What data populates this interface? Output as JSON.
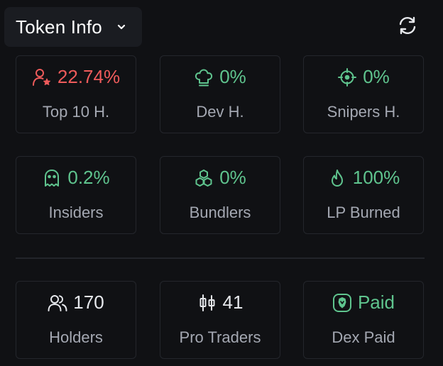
{
  "header": {
    "title": "Token Info",
    "dropdown_icon": "chevron-down-icon",
    "refresh_icon": "refresh-icon"
  },
  "colors": {
    "danger": "#ee5b5b",
    "success": "#5fc48e",
    "neutral": "#e6e8ec",
    "label": "#a4a8b2",
    "border": "#24262c",
    "background": "#101114"
  },
  "stats_row1": [
    {
      "value": "22.74%",
      "label": "Top 10 H.",
      "icon": "user-star-icon",
      "tone": "danger"
    },
    {
      "value": "0%",
      "label": "Dev H.",
      "icon": "chef-hat-icon",
      "tone": "success"
    },
    {
      "value": "0%",
      "label": "Snipers H.",
      "icon": "crosshair-icon",
      "tone": "success"
    }
  ],
  "stats_row2": [
    {
      "value": "0.2%",
      "label": "Insiders",
      "icon": "ghost-icon",
      "tone": "success"
    },
    {
      "value": "0%",
      "label": "Bundlers",
      "icon": "boxes-icon",
      "tone": "success"
    },
    {
      "value": "100%",
      "label": "LP Burned",
      "icon": "flame-icon",
      "tone": "success"
    }
  ],
  "stats_row3": [
    {
      "value": "170",
      "label": "Holders",
      "icon": "users-icon",
      "tone": "neutral"
    },
    {
      "value": "41",
      "label": "Pro Traders",
      "icon": "candlestick-icon",
      "tone": "neutral"
    },
    {
      "value": "Paid",
      "label": "Dex Paid",
      "icon": "shield-badge-icon",
      "tone": "success"
    }
  ]
}
